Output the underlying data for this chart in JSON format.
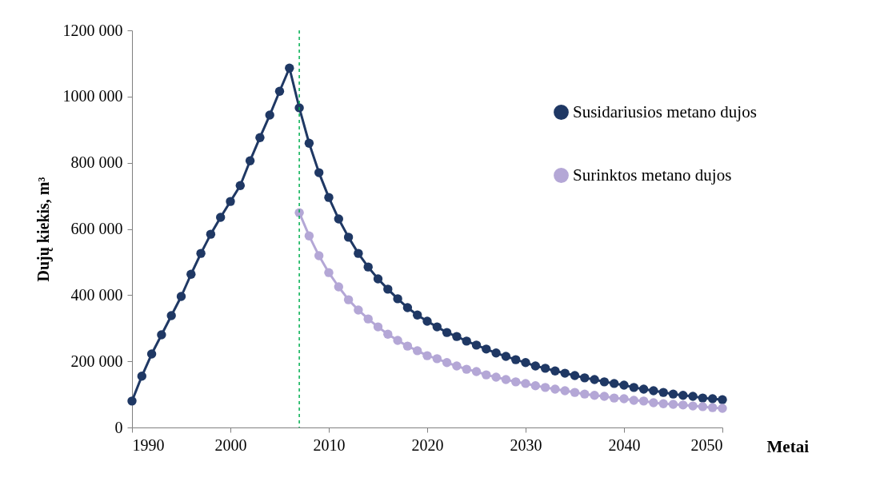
{
  "chart_data": {
    "type": "line",
    "xlabel": "Metai",
    "ylabel": "Dujų kiekis, m³",
    "x": [
      1990,
      1991,
      1992,
      1993,
      1994,
      1995,
      1996,
      1997,
      1998,
      1999,
      2000,
      2001,
      2002,
      2003,
      2004,
      2005,
      2006,
      2007,
      2008,
      2009,
      2010,
      2011,
      2012,
      2013,
      2014,
      2015,
      2016,
      2017,
      2018,
      2019,
      2020,
      2021,
      2022,
      2023,
      2024,
      2025,
      2026,
      2027,
      2028,
      2029,
      2030,
      2031,
      2032,
      2033,
      2034,
      2035,
      2036,
      2037,
      2038,
      2039,
      2040,
      2041,
      2042,
      2043,
      2044,
      2045,
      2046,
      2047,
      2048,
      2049,
      2050
    ],
    "series": [
      {
        "name": "Susidariusios metano dujos",
        "color": "#1f3864",
        "values": [
          80000,
          155000,
          222000,
          280000,
          338000,
          396000,
          463000,
          526000,
          584000,
          635000,
          683000,
          731000,
          806000,
          876000,
          944000,
          1016000,
          1086000,
          966000,
          859000,
          770000,
          695000,
          630000,
          575000,
          526000,
          485000,
          449000,
          418000,
          389000,
          362000,
          340000,
          321000,
          304000,
          287000,
          275000,
          261000,
          249000,
          237000,
          225000,
          215000,
          205000,
          196000,
          186000,
          179000,
          171000,
          164000,
          157000,
          150000,
          145000,
          138000,
          133000,
          128000,
          121000,
          116000,
          111000,
          106000,
          101000,
          97000,
          94000,
          89000,
          87000,
          84000
        ]
      },
      {
        "name": "Surinktos metano dujos",
        "color": "#b4a7d6",
        "x": [
          2007,
          2008,
          2009,
          2010,
          2011,
          2012,
          2013,
          2014,
          2015,
          2016,
          2017,
          2018,
          2019,
          2020,
          2021,
          2022,
          2023,
          2024,
          2025,
          2026,
          2027,
          2028,
          2029,
          2030,
          2031,
          2032,
          2033,
          2034,
          2035,
          2036,
          2037,
          2038,
          2039,
          2040,
          2041,
          2042,
          2043,
          2044,
          2045,
          2046,
          2047,
          2048,
          2049,
          2050
        ],
        "values": [
          649000,
          579000,
          519000,
          468000,
          425000,
          386000,
          355000,
          328000,
          304000,
          282000,
          263000,
          246000,
          232000,
          217000,
          208000,
          196000,
          186000,
          176000,
          169000,
          159000,
          152000,
          145000,
          138000,
          133000,
          126000,
          121000,
          116000,
          111000,
          106000,
          101000,
          97000,
          94000,
          89000,
          87000,
          82000,
          80000,
          75000,
          72000,
          70000,
          68000,
          65000,
          63000,
          60000,
          58000
        ]
      }
    ],
    "xlim": [
      1990,
      2050
    ],
    "xticks": [
      1990,
      2000,
      2010,
      2020,
      2030,
      2040,
      2050
    ],
    "ylim": [
      0,
      1200000
    ],
    "yticks": [
      0,
      {
        "value": 200000,
        "label": "200 000"
      },
      {
        "value": 400000,
        "label": "400 000"
      },
      {
        "value": 600000,
        "label": "600 000"
      },
      {
        "value": 800000,
        "label": "800 000"
      },
      {
        "value": 1000000,
        "label": "1000 000"
      },
      {
        "value": 1200000,
        "label": "1200 000"
      }
    ],
    "ref_lines": [
      {
        "axis": "x",
        "value": 2007,
        "color": "#00b050",
        "line_style": "dashed"
      }
    ],
    "legend": "top right",
    "marker": "circle",
    "line_style": "solid",
    "grid": false
  }
}
